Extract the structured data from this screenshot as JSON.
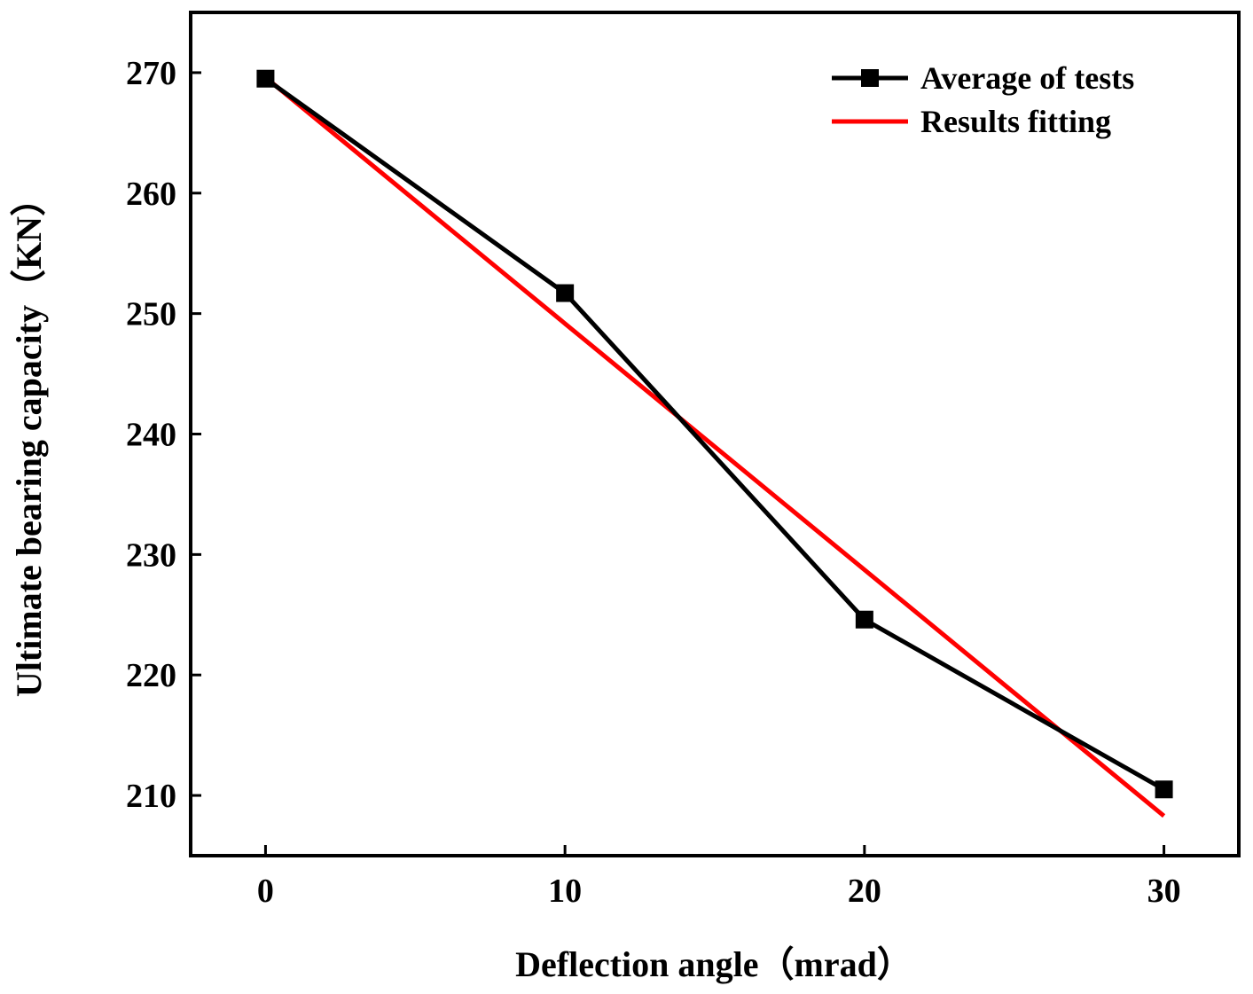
{
  "chart_data": {
    "type": "line",
    "title": "",
    "xlabel": "Deflection angle（mrad）",
    "ylabel": "Ultimate bearing capacity（KN）",
    "xlim": [
      -2.5,
      32.5
    ],
    "ylim": [
      205,
      275
    ],
    "xticks": [
      0,
      10,
      20,
      30
    ],
    "yticks": [
      210,
      220,
      230,
      240,
      250,
      260,
      270
    ],
    "grid": false,
    "legend_position": "top-right",
    "series": [
      {
        "name": "Average of tests",
        "style": "line-square-markers",
        "color": "#000000",
        "x": [
          0,
          10,
          20,
          30
        ],
        "y": [
          269.5,
          251.7,
          224.6,
          210.5
        ]
      },
      {
        "name": "Results fitting",
        "style": "line",
        "color": "#ff0000",
        "x": [
          0,
          30
        ],
        "y": [
          269.6,
          208.3
        ]
      }
    ]
  }
}
